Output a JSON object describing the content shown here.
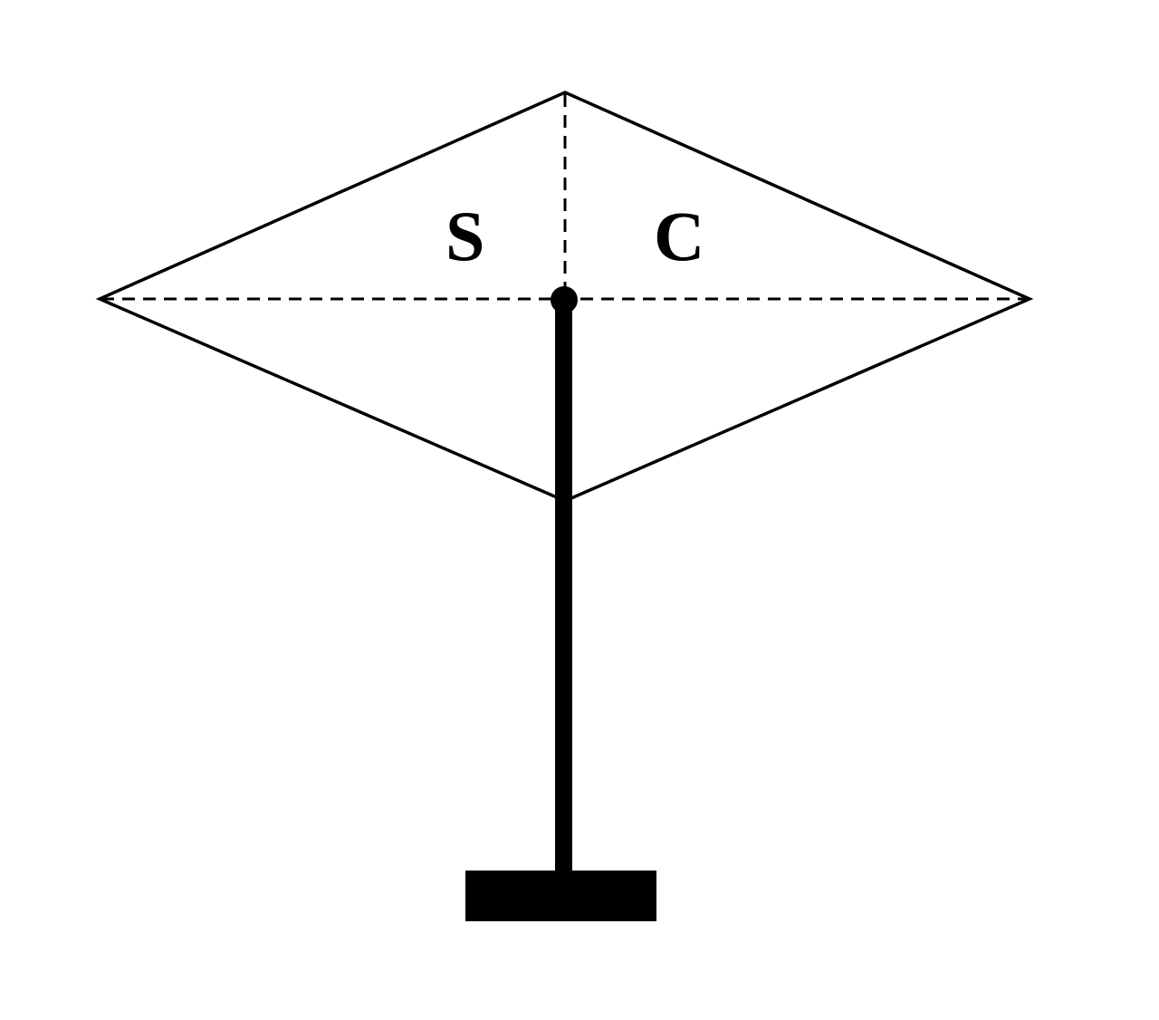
{
  "labels": {
    "left": "S",
    "right": "C"
  },
  "colors": {
    "stroke": "#000000",
    "background": "#ffffff"
  }
}
